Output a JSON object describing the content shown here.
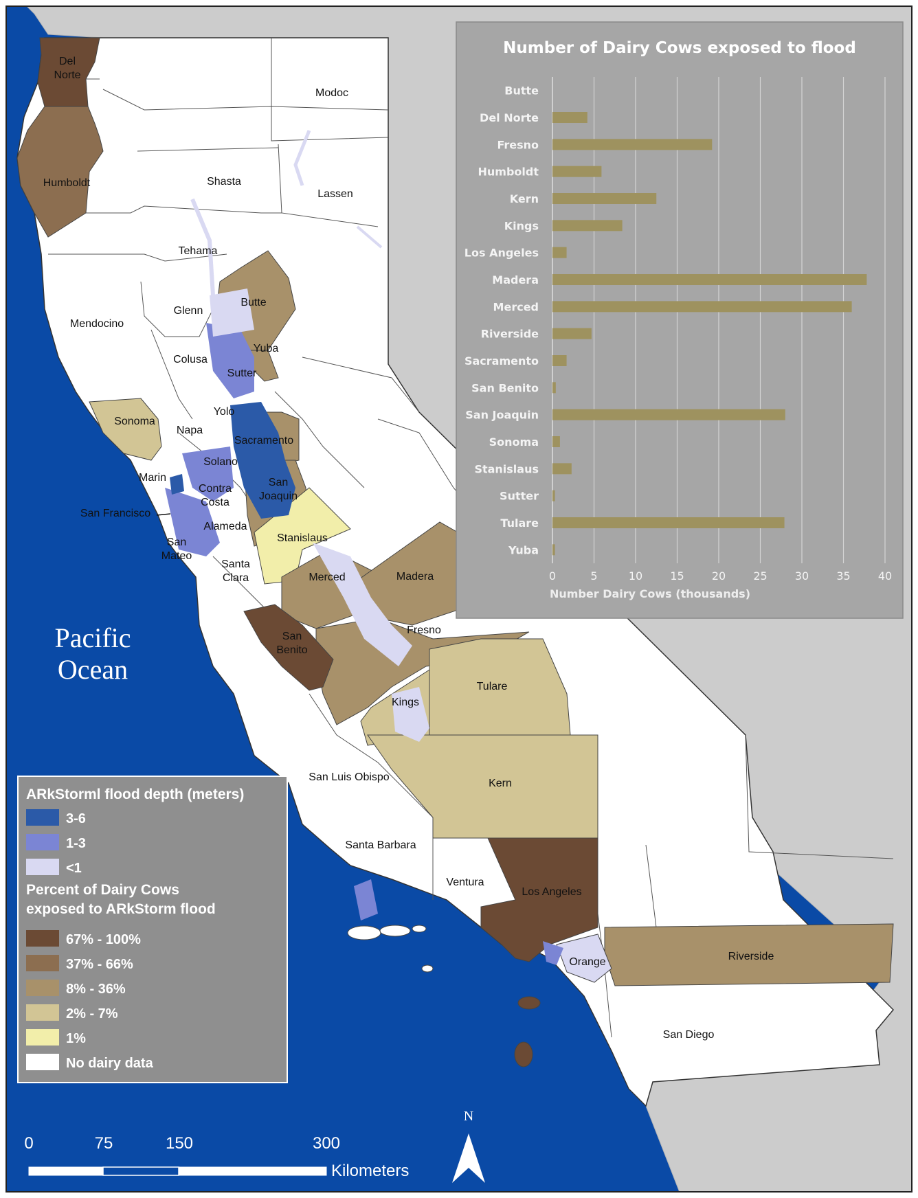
{
  "map": {
    "ocean_label_line1": "Pacific",
    "ocean_label_line2": "Ocean",
    "counties": {
      "del_norte_1": "Del",
      "del_norte_2": "Norte",
      "modoc": "Modoc",
      "humboldt": "Humboldt",
      "shasta": "Shasta",
      "lassen": "Lassen",
      "tehama": "Tehama",
      "glenn": "Glenn",
      "butte": "Butte",
      "mendocino": "Mendocino",
      "colusa": "Colusa",
      "yuba": "Yuba",
      "sutter": "Sutter",
      "yolo": "Yolo",
      "sonoma": "Sonoma",
      "napa": "Napa",
      "sacramento": "Sacramento",
      "solano": "Solano",
      "marin": "Marin",
      "contra_costa_1": "Contra",
      "contra_costa_2": "Costa",
      "san_joaquin_1": "San",
      "san_joaquin_2": "Joaquin",
      "san_francisco": "San Francisco",
      "alameda": "Alameda",
      "san_mateo_1": "San",
      "san_mateo_2": "Mateo",
      "stanislaus": "Stanislaus",
      "santa_clara_1": "Santa",
      "santa_clara_2": "Clara",
      "merced": "Merced",
      "madera": "Madera",
      "fresno": "Fresno",
      "san_benito_1": "San",
      "san_benito_2": "Benito",
      "tulare": "Tulare",
      "kings": "Kings",
      "kern": "Kern",
      "san_luis_obispo": "San Luis Obispo",
      "santa_barbara": "Santa Barbara",
      "ventura": "Ventura",
      "los_angeles": "Los Angeles",
      "orange": "Orange",
      "riverside": "Riverside",
      "san_diego": "San Diego"
    }
  },
  "legend": {
    "flood_title": "ARkStorml flood depth (meters)",
    "flood_items": [
      {
        "label": "3-6",
        "color": "#2b5aa8"
      },
      {
        "label": "1-3",
        "color": "#7b85d4"
      },
      {
        "label": "<1",
        "color": "#d9d9f2"
      }
    ],
    "percent_title_1": "Percent of Dairy Cows",
    "percent_title_2": "exposed to ARkStorm flood",
    "percent_items": [
      {
        "label": "67% - 100%",
        "color": "#6b4a34"
      },
      {
        "label": "37% - 66%",
        "color": "#8c6e50"
      },
      {
        "label": "8% - 36%",
        "color": "#a8916a"
      },
      {
        "label": "2% - 7%",
        "color": "#d2c595"
      },
      {
        "label": "1%",
        "color": "#f2eeaa"
      },
      {
        "label": "No dairy data",
        "color": "#ffffff"
      }
    ]
  },
  "scale_bar": {
    "ticks": [
      "0",
      "75",
      "150",
      "300"
    ],
    "unit": "Kilometers"
  },
  "north_arrow": {
    "label": "N"
  },
  "colors": {
    "ocean": "#0a4aa6",
    "neighbor_land": "#cccccc",
    "chart_bar": "#9e925f",
    "chart_bg": "#a6a6a6"
  },
  "chart_data": {
    "type": "bar",
    "orientation": "horizontal",
    "title": "Number of Dairy Cows exposed to flood",
    "xlabel": "Number Dairy Cows (thousands)",
    "ylabel": "",
    "xlim": [
      0,
      40
    ],
    "xticks": [
      "0",
      "5",
      "10",
      "15",
      "20",
      "25",
      "30",
      "35",
      "40"
    ],
    "grid": true,
    "categories": [
      "Butte",
      "Del Norte",
      "Fresno",
      "Humboldt",
      "Kern",
      "Kings",
      "Los Angeles",
      "Madera",
      "Merced",
      "Riverside",
      "Sacramento",
      "San Benito",
      "San Joaquin",
      "Sonoma",
      "Stanislaus",
      "Sutter",
      "Tulare",
      "Yuba"
    ],
    "values": [
      0,
      4.2,
      19.2,
      5.9,
      12.5,
      8.4,
      1.7,
      37.8,
      36.0,
      4.7,
      1.7,
      0.4,
      28.0,
      0.9,
      2.3,
      0.3,
      27.9,
      0.3
    ]
  }
}
